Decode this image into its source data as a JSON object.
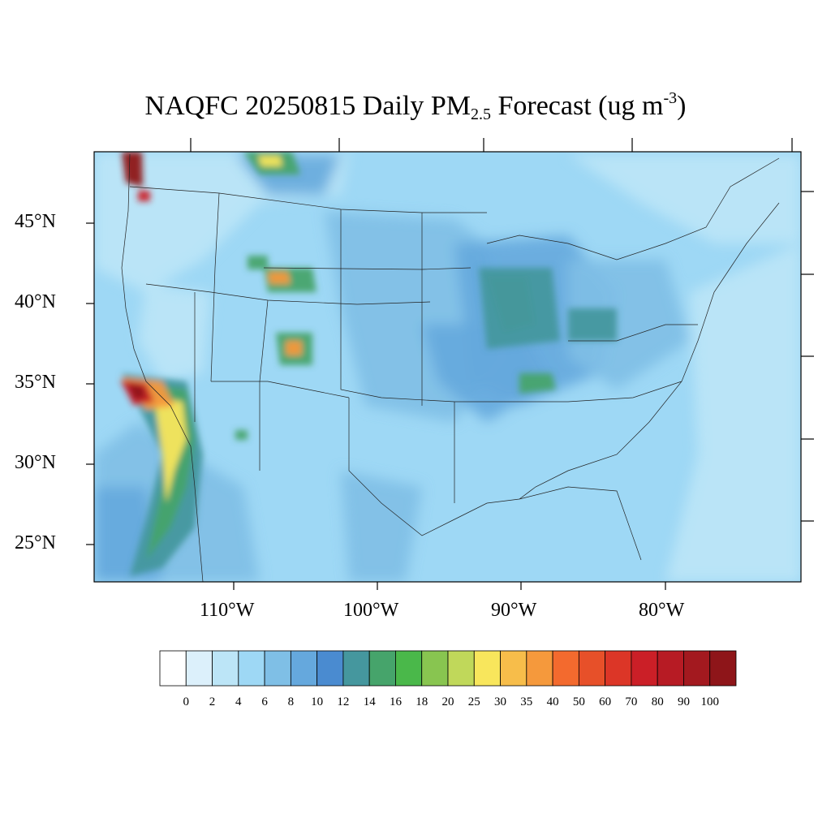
{
  "title": {
    "main": "NAQFC 20250815 Daily PM",
    "sub": "2.5",
    "mid": " Forecast (ug m",
    "sup": "-3",
    "end": ")"
  },
  "lat_labels": [
    "45°N",
    "40°N",
    "35°N",
    "30°N",
    "25°N"
  ],
  "lon_labels": [
    "110°W",
    "100°W",
    "90°W",
    "80°W"
  ],
  "colorbar": {
    "labels": [
      "0",
      "2",
      "4",
      "6",
      "8",
      "10",
      "12",
      "14",
      "16",
      "18",
      "20",
      "25",
      "30",
      "35",
      "40",
      "50",
      "60",
      "70",
      "80",
      "90",
      "100"
    ],
    "colors": [
      "#ffffff",
      "#dcf0fb",
      "#bce5f7",
      "#9ed8f5",
      "#7fbfe6",
      "#65a8dd",
      "#4a8bd0",
      "#45979e",
      "#46a46b",
      "#4ab84a",
      "#88c550",
      "#c0d85a",
      "#f8e65c",
      "#f7bd4a",
      "#f5993c",
      "#f36a2e",
      "#e75029",
      "#dc3627",
      "#cb1f27",
      "#b71b24",
      "#a3191f",
      "#8e1519"
    ]
  },
  "map_colors": {
    "ocean": "#7fbfe6",
    "low": "#bce5f7",
    "mid": "#9ed8f5",
    "moderate": "#7fbfe6",
    "elevated": "#65a8dd",
    "high": "#4a8bd0",
    "teal": "#45979e",
    "green": "#46a46b",
    "yellow": "#f8e65c",
    "orange": "#f5993c",
    "red": "#cb1f27",
    "darkred": "#8e1519"
  }
}
